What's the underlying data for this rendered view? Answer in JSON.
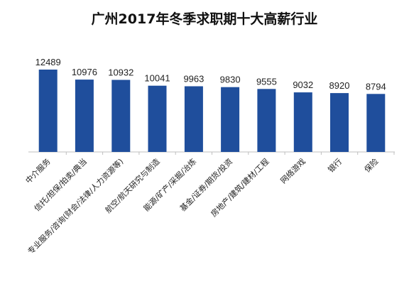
{
  "chart_data": {
    "type": "bar",
    "title": "广州2017年冬季求职期十大高薪行业",
    "categories": [
      "中介服务",
      "信托/担保/拍卖/典当",
      "专业服务/咨询(财会/法律/人力资源等)",
      "航空/航天研究与制造",
      "能源/矿产/采掘/冶炼",
      "基金/证券/期货/投资",
      "房地产/建筑/建材/工程",
      "网络游戏",
      "银行",
      "保险"
    ],
    "values": [
      12489,
      10976,
      10932,
      10041,
      9963,
      9830,
      9555,
      9032,
      8920,
      8794
    ],
    "xlabel": "",
    "ylabel": "",
    "ylim": [
      0,
      12489
    ],
    "grid": false,
    "legend": "none",
    "colors": {
      "bar": "#1f4e9c",
      "axis": "#bfbfbf",
      "text": "#222222"
    }
  }
}
